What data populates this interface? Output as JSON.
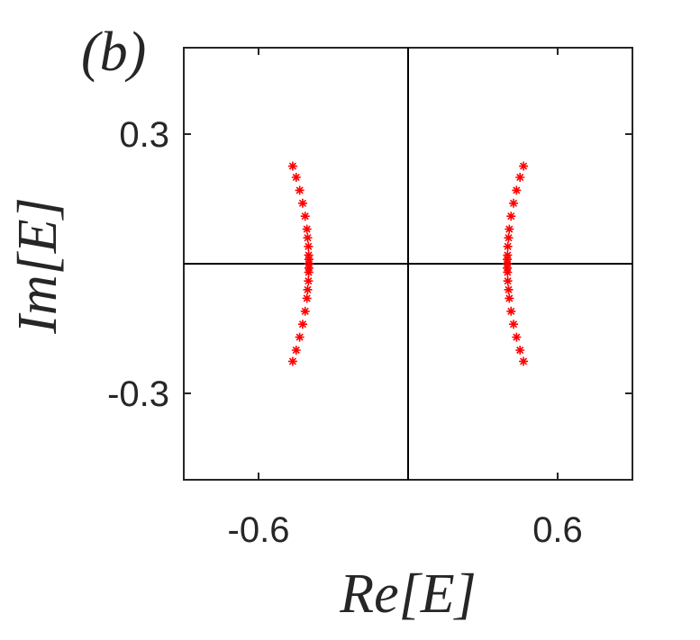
{
  "chart_data": {
    "type": "scatter",
    "annotation": "(b)",
    "x_label": "Re[E]",
    "y_label": "Im[E]",
    "xlim": [
      -0.9,
      0.9
    ],
    "ylim": [
      -0.5,
      0.5
    ],
    "xticks": [
      -0.6,
      0.6
    ],
    "yticks": [
      -0.3,
      0.3
    ],
    "zero_lines": true,
    "series": [
      {
        "color": "#ff0000",
        "x": [
          -0.463,
          -0.449,
          -0.435,
          -0.423,
          -0.413,
          -0.406,
          -0.403,
          -0.4,
          -0.399,
          -0.398,
          -0.398,
          -0.398,
          -0.399,
          -0.4,
          -0.403,
          -0.406,
          -0.413,
          -0.423,
          -0.435,
          -0.449,
          -0.463,
          0.463,
          0.449,
          0.435,
          0.423,
          0.413,
          0.406,
          0.403,
          0.4,
          0.399,
          0.398,
          0.398,
          0.398,
          0.399,
          0.4,
          0.403,
          0.406,
          0.413,
          0.423,
          0.435,
          0.449,
          0.463
        ],
        "values": [
          -0.226,
          -0.2,
          -0.17,
          -0.14,
          -0.11,
          -0.08,
          -0.06,
          -0.04,
          -0.02,
          -0.01,
          0,
          0.01,
          0.02,
          0.04,
          0.06,
          0.08,
          0.11,
          0.14,
          0.17,
          0.2,
          0.226,
          -0.226,
          -0.2,
          -0.17,
          -0.14,
          -0.11,
          -0.08,
          -0.06,
          -0.04,
          -0.02,
          -0.01,
          0,
          0.01,
          0.02,
          0.04,
          0.06,
          0.08,
          0.11,
          0.14,
          0.17,
          0.2,
          0.226
        ]
      }
    ]
  }
}
